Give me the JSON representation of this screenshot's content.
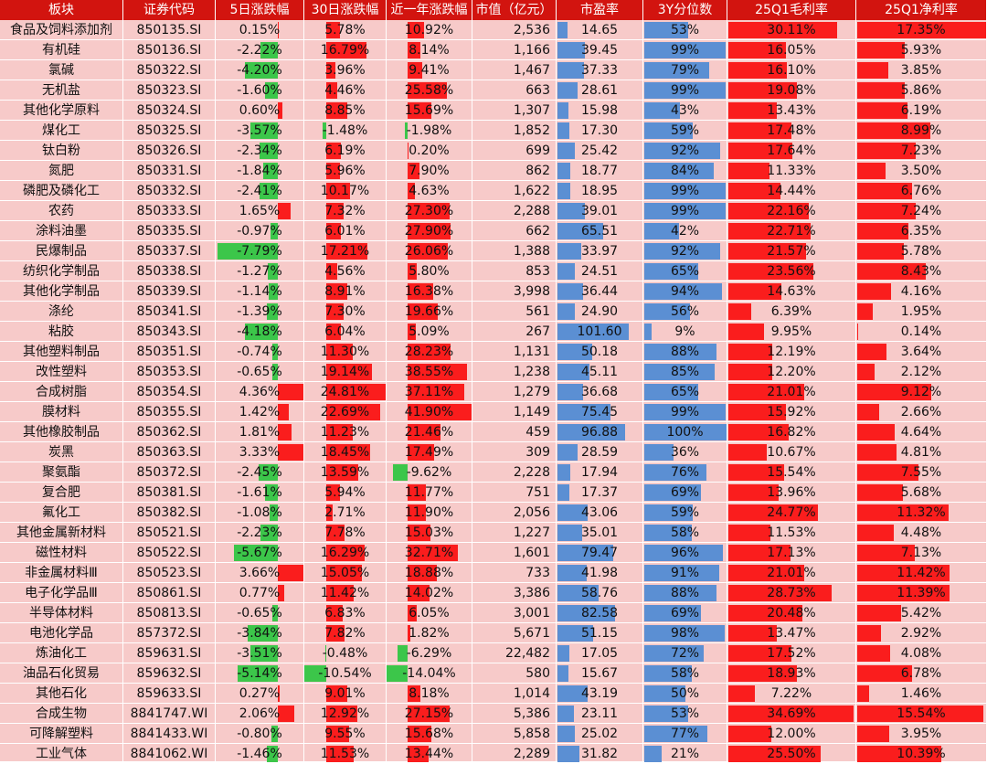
{
  "chart_data": {
    "type": "table",
    "columns": [
      "板块",
      "证券代码",
      "5日涨跌幅",
      "30日涨跌幅",
      "近一年涨跌幅",
      "市值（亿元）",
      "市盈率",
      "3Y分位数",
      "25Q1毛利率",
      "25Q1净利率"
    ],
    "rows": [
      {
        "sector": "食品及饲料添加剂",
        "code": "850135.SI",
        "d5": "0.15%",
        "d30": "5.78%",
        "y1": "10.92%",
        "cap": "2,536",
        "pe": "14.65",
        "pct3y": "53%",
        "gross": "30.11%",
        "net": "17.35%"
      },
      {
        "sector": "有机硅",
        "code": "850136.SI",
        "d5": "-2.22%",
        "d30": "16.79%",
        "y1": "8.14%",
        "cap": "1,166",
        "pe": "39.45",
        "pct3y": "99%",
        "gross": "16.05%",
        "net": "5.93%"
      },
      {
        "sector": "氯碱",
        "code": "850322.SI",
        "d5": "-4.20%",
        "d30": "3.96%",
        "y1": "9.41%",
        "cap": "1,467",
        "pe": "37.33",
        "pct3y": "79%",
        "gross": "16.10%",
        "net": "3.85%"
      },
      {
        "sector": "无机盐",
        "code": "850323.SI",
        "d5": "-1.60%",
        "d30": "4.46%",
        "y1": "25.58%",
        "cap": "663",
        "pe": "28.61",
        "pct3y": "99%",
        "gross": "19.08%",
        "net": "5.86%"
      },
      {
        "sector": "其他化学原料",
        "code": "850324.SI",
        "d5": "0.60%",
        "d30": "8.85%",
        "y1": "15.69%",
        "cap": "1,307",
        "pe": "15.98",
        "pct3y": "43%",
        "gross": "13.43%",
        "net": "6.19%"
      },
      {
        "sector": "煤化工",
        "code": "850325.SI",
        "d5": "-3.57%",
        "d30": "-1.48%",
        "y1": "-1.98%",
        "cap": "1,852",
        "pe": "17.30",
        "pct3y": "59%",
        "gross": "17.48%",
        "net": "8.99%"
      },
      {
        "sector": "钛白粉",
        "code": "850326.SI",
        "d5": "-2.34%",
        "d30": "6.19%",
        "y1": "0.20%",
        "cap": "699",
        "pe": "25.42",
        "pct3y": "92%",
        "gross": "17.64%",
        "net": "7.23%"
      },
      {
        "sector": "氮肥",
        "code": "850331.SI",
        "d5": "-1.84%",
        "d30": "5.96%",
        "y1": "7.90%",
        "cap": "862",
        "pe": "18.77",
        "pct3y": "84%",
        "gross": "11.33%",
        "net": "3.50%"
      },
      {
        "sector": "磷肥及磷化工",
        "code": "850332.SI",
        "d5": "-2.41%",
        "d30": "10.17%",
        "y1": "4.63%",
        "cap": "1,622",
        "pe": "18.95",
        "pct3y": "99%",
        "gross": "14.44%",
        "net": "6.76%"
      },
      {
        "sector": "农药",
        "code": "850333.SI",
        "d5": "1.65%",
        "d30": "7.32%",
        "y1": "27.30%",
        "cap": "2,288",
        "pe": "39.01",
        "pct3y": "99%",
        "gross": "22.16%",
        "net": "7.24%"
      },
      {
        "sector": "涂料油墨",
        "code": "850335.SI",
        "d5": "-0.97%",
        "d30": "6.01%",
        "y1": "27.90%",
        "cap": "662",
        "pe": "65.51",
        "pct3y": "42%",
        "gross": "22.71%",
        "net": "6.35%"
      },
      {
        "sector": "民爆制品",
        "code": "850337.SI",
        "d5": "-7.79%",
        "d30": "17.21%",
        "y1": "26.06%",
        "cap": "1,388",
        "pe": "33.97",
        "pct3y": "92%",
        "gross": "21.57%",
        "net": "5.78%"
      },
      {
        "sector": "纺织化学制品",
        "code": "850338.SI",
        "d5": "-1.27%",
        "d30": "4.56%",
        "y1": "5.80%",
        "cap": "853",
        "pe": "24.51",
        "pct3y": "65%",
        "gross": "23.56%",
        "net": "8.43%"
      },
      {
        "sector": "其他化学制品",
        "code": "850339.SI",
        "d5": "-1.14%",
        "d30": "8.91%",
        "y1": "16.38%",
        "cap": "3,998",
        "pe": "36.44",
        "pct3y": "94%",
        "gross": "14.63%",
        "net": "4.16%"
      },
      {
        "sector": "涤纶",
        "code": "850341.SI",
        "d5": "-1.39%",
        "d30": "7.30%",
        "y1": "19.66%",
        "cap": "561",
        "pe": "24.90",
        "pct3y": "56%",
        "gross": "6.39%",
        "net": "1.95%"
      },
      {
        "sector": "粘胶",
        "code": "850343.SI",
        "d5": "-4.18%",
        "d30": "6.04%",
        "y1": "5.09%",
        "cap": "267",
        "pe": "101.60",
        "pct3y": "9%",
        "gross": "9.95%",
        "net": "0.14%"
      },
      {
        "sector": "其他塑料制品",
        "code": "850351.SI",
        "d5": "-0.74%",
        "d30": "11.30%",
        "y1": "28.23%",
        "cap": "1,131",
        "pe": "50.18",
        "pct3y": "88%",
        "gross": "12.19%",
        "net": "3.64%"
      },
      {
        "sector": "改性塑料",
        "code": "850353.SI",
        "d5": "-0.65%",
        "d30": "19.14%",
        "y1": "38.55%",
        "cap": "1,238",
        "pe": "45.11",
        "pct3y": "85%",
        "gross": "12.20%",
        "net": "2.12%"
      },
      {
        "sector": "合成树脂",
        "code": "850354.SI",
        "d5": "4.36%",
        "d30": "24.81%",
        "y1": "37.11%",
        "cap": "1,279",
        "pe": "36.68",
        "pct3y": "65%",
        "gross": "21.01%",
        "net": "9.12%"
      },
      {
        "sector": "膜材料",
        "code": "850355.SI",
        "d5": "1.42%",
        "d30": "22.69%",
        "y1": "41.90%",
        "cap": "1,149",
        "pe": "75.45",
        "pct3y": "99%",
        "gross": "15.92%",
        "net": "2.66%"
      },
      {
        "sector": "其他橡胶制品",
        "code": "850362.SI",
        "d5": "1.81%",
        "d30": "11.23%",
        "y1": "21.46%",
        "cap": "459",
        "pe": "96.88",
        "pct3y": "100%",
        "gross": "16.82%",
        "net": "4.64%"
      },
      {
        "sector": "炭黑",
        "code": "850363.SI",
        "d5": "3.33%",
        "d30": "18.45%",
        "y1": "17.49%",
        "cap": "309",
        "pe": "28.59",
        "pct3y": "36%",
        "gross": "10.67%",
        "net": "4.81%"
      },
      {
        "sector": "聚氨酯",
        "code": "850372.SI",
        "d5": "-2.45%",
        "d30": "13.59%",
        "y1": "-9.62%",
        "cap": "2,228",
        "pe": "17.94",
        "pct3y": "76%",
        "gross": "15.54%",
        "net": "7.55%"
      },
      {
        "sector": "复合肥",
        "code": "850381.SI",
        "d5": "-1.61%",
        "d30": "5.94%",
        "y1": "11.77%",
        "cap": "751",
        "pe": "17.37",
        "pct3y": "69%",
        "gross": "13.96%",
        "net": "5.68%"
      },
      {
        "sector": "氟化工",
        "code": "850382.SI",
        "d5": "-1.08%",
        "d30": "2.71%",
        "y1": "11.90%",
        "cap": "2,056",
        "pe": "43.06",
        "pct3y": "59%",
        "gross": "24.77%",
        "net": "11.32%"
      },
      {
        "sector": "其他金属新材料",
        "code": "850521.SI",
        "d5": "-2.23%",
        "d30": "7.78%",
        "y1": "15.03%",
        "cap": "1,227",
        "pe": "35.01",
        "pct3y": "58%",
        "gross": "11.53%",
        "net": "4.48%"
      },
      {
        "sector": "磁性材料",
        "code": "850522.SI",
        "d5": "-5.67%",
        "d30": "16.29%",
        "y1": "32.71%",
        "cap": "1,601",
        "pe": "79.47",
        "pct3y": "96%",
        "gross": "17.13%",
        "net": "7.13%"
      },
      {
        "sector": "非金属材料Ⅲ",
        "code": "850523.SI",
        "d5": "3.66%",
        "d30": "15.05%",
        "y1": "18.88%",
        "cap": "733",
        "pe": "41.98",
        "pct3y": "91%",
        "gross": "21.01%",
        "net": "11.42%"
      },
      {
        "sector": "电子化学品Ⅲ",
        "code": "850861.SI",
        "d5": "0.77%",
        "d30": "11.42%",
        "y1": "14.02%",
        "cap": "3,386",
        "pe": "58.76",
        "pct3y": "88%",
        "gross": "28.73%",
        "net": "11.39%"
      },
      {
        "sector": "半导体材料",
        "code": "850813.SI",
        "d5": "-0.65%",
        "d30": "6.83%",
        "y1": "6.05%",
        "cap": "3,001",
        "pe": "82.58",
        "pct3y": "69%",
        "gross": "20.48%",
        "net": "5.42%"
      },
      {
        "sector": "电池化学品",
        "code": "857372.SI",
        "d5": "-3.84%",
        "d30": "7.82%",
        "y1": "1.82%",
        "cap": "5,671",
        "pe": "51.15",
        "pct3y": "98%",
        "gross": "13.47%",
        "net": "2.92%"
      },
      {
        "sector": "炼油化工",
        "code": "859631.SI",
        "d5": "-3.51%",
        "d30": "-0.48%",
        "y1": "-6.29%",
        "cap": "22,482",
        "pe": "17.05",
        "pct3y": "72%",
        "gross": "17.52%",
        "net": "4.08%"
      },
      {
        "sector": "油品石化贸易",
        "code": "859632.SI",
        "d5": "-5.14%",
        "d30": "-10.54%",
        "y1": "-14.04%",
        "cap": "580",
        "pe": "15.67",
        "pct3y": "58%",
        "gross": "18.93%",
        "net": "6.78%"
      },
      {
        "sector": "其他石化",
        "code": "859633.SI",
        "d5": "0.27%",
        "d30": "9.01%",
        "y1": "8.18%",
        "cap": "1,014",
        "pe": "43.19",
        "pct3y": "50%",
        "gross": "7.22%",
        "net": "1.46%"
      },
      {
        "sector": "合成生物",
        "code": "8841747.WI",
        "d5": "2.06%",
        "d30": "12.92%",
        "y1": "27.15%",
        "cap": "5,386",
        "pe": "23.11",
        "pct3y": "53%",
        "gross": "34.69%",
        "net": "15.54%"
      },
      {
        "sector": "可降解塑料",
        "code": "8841433.WI",
        "d5": "-0.80%",
        "d30": "9.55%",
        "y1": "15.68%",
        "cap": "5,858",
        "pe": "25.02",
        "pct3y": "77%",
        "gross": "12.00%",
        "net": "3.95%"
      },
      {
        "sector": "工业气体",
        "code": "8841062.WI",
        "d5": "-1.46%",
        "d30": "11.53%",
        "y1": "13.44%",
        "cap": "2,289",
        "pe": "31.82",
        "pct3y": "21%",
        "gross": "25.50%",
        "net": "10.39%"
      }
    ]
  }
}
